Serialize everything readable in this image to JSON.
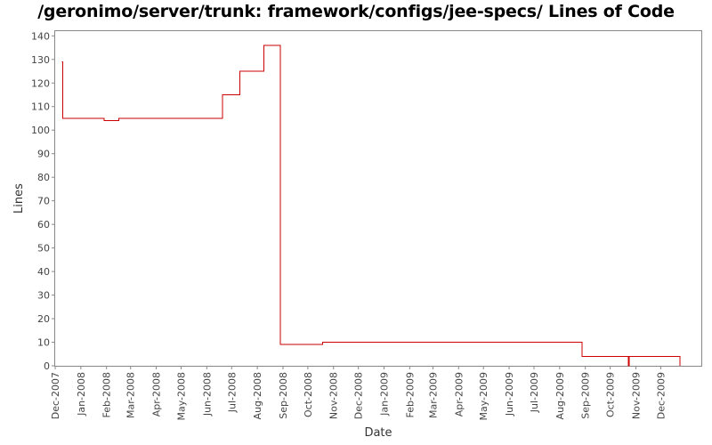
{
  "title": "/geronimo/server/trunk: framework/configs/jee-specs/ Lines of Code",
  "colors": {
    "series": "#cc0000",
    "frame": "#888888",
    "background": "#ffffff"
  },
  "chart_data": {
    "type": "line",
    "line_style": "step",
    "title": "/geronimo/server/trunk: framework/configs/jee-specs/ Lines of Code",
    "xlabel": "Date",
    "ylabel": "Lines",
    "grid": false,
    "legend": "none",
    "xlim": [
      "2007-12-01",
      "2010-01-19"
    ],
    "ylim": [
      0,
      142
    ],
    "y_ticks": [
      0,
      10,
      20,
      30,
      40,
      50,
      60,
      70,
      80,
      90,
      100,
      110,
      120,
      130,
      140
    ],
    "x_ticks": [
      {
        "date": "2007-12-01",
        "label": "Dec-2007"
      },
      {
        "date": "2008-01-01",
        "label": "Jan-2008"
      },
      {
        "date": "2008-02-01",
        "label": "Feb-2008"
      },
      {
        "date": "2008-03-01",
        "label": "Mar-2008"
      },
      {
        "date": "2008-04-01",
        "label": "Apr-2008"
      },
      {
        "date": "2008-05-01",
        "label": "May-2008"
      },
      {
        "date": "2008-06-01",
        "label": "Jun-2008"
      },
      {
        "date": "2008-07-01",
        "label": "Jul-2008"
      },
      {
        "date": "2008-08-01",
        "label": "Aug-2008"
      },
      {
        "date": "2008-09-01",
        "label": "Sep-2008"
      },
      {
        "date": "2008-10-01",
        "label": "Oct-2008"
      },
      {
        "date": "2008-11-01",
        "label": "Nov-2008"
      },
      {
        "date": "2008-12-01",
        "label": "Dec-2008"
      },
      {
        "date": "2009-01-01",
        "label": "Jan-2009"
      },
      {
        "date": "2009-02-01",
        "label": "Feb-2009"
      },
      {
        "date": "2009-03-01",
        "label": "Mar-2009"
      },
      {
        "date": "2009-04-01",
        "label": "Apr-2009"
      },
      {
        "date": "2009-05-01",
        "label": "May-2009"
      },
      {
        "date": "2009-06-01",
        "label": "Jun-2009"
      },
      {
        "date": "2009-07-01",
        "label": "Jul-2009"
      },
      {
        "date": "2009-08-01",
        "label": "Aug-2009"
      },
      {
        "date": "2009-09-01",
        "label": "Sep-2009"
      },
      {
        "date": "2009-10-01",
        "label": "Oct-2009"
      },
      {
        "date": "2009-11-01",
        "label": "Nov-2009"
      },
      {
        "date": "2009-12-01",
        "label": "Dec-2009"
      }
    ],
    "series": [
      {
        "points": [
          {
            "x": "2007-12-09",
            "y": 129
          },
          {
            "x": "2007-12-10",
            "y": 105
          },
          {
            "x": "2008-01-29",
            "y": 104
          },
          {
            "x": "2008-02-16",
            "y": 105
          },
          {
            "x": "2008-06-20",
            "y": 115
          },
          {
            "x": "2008-07-11",
            "y": 125
          },
          {
            "x": "2008-08-09",
            "y": 136
          },
          {
            "x": "2008-08-29",
            "y": 9
          },
          {
            "x": "2008-10-19",
            "y": 10
          },
          {
            "x": "2009-08-28",
            "y": 4
          },
          {
            "x": "2009-10-23",
            "y": 0
          },
          {
            "x": "2009-10-24",
            "y": 4
          },
          {
            "x": "2009-12-24",
            "y": 0
          }
        ]
      }
    ]
  }
}
